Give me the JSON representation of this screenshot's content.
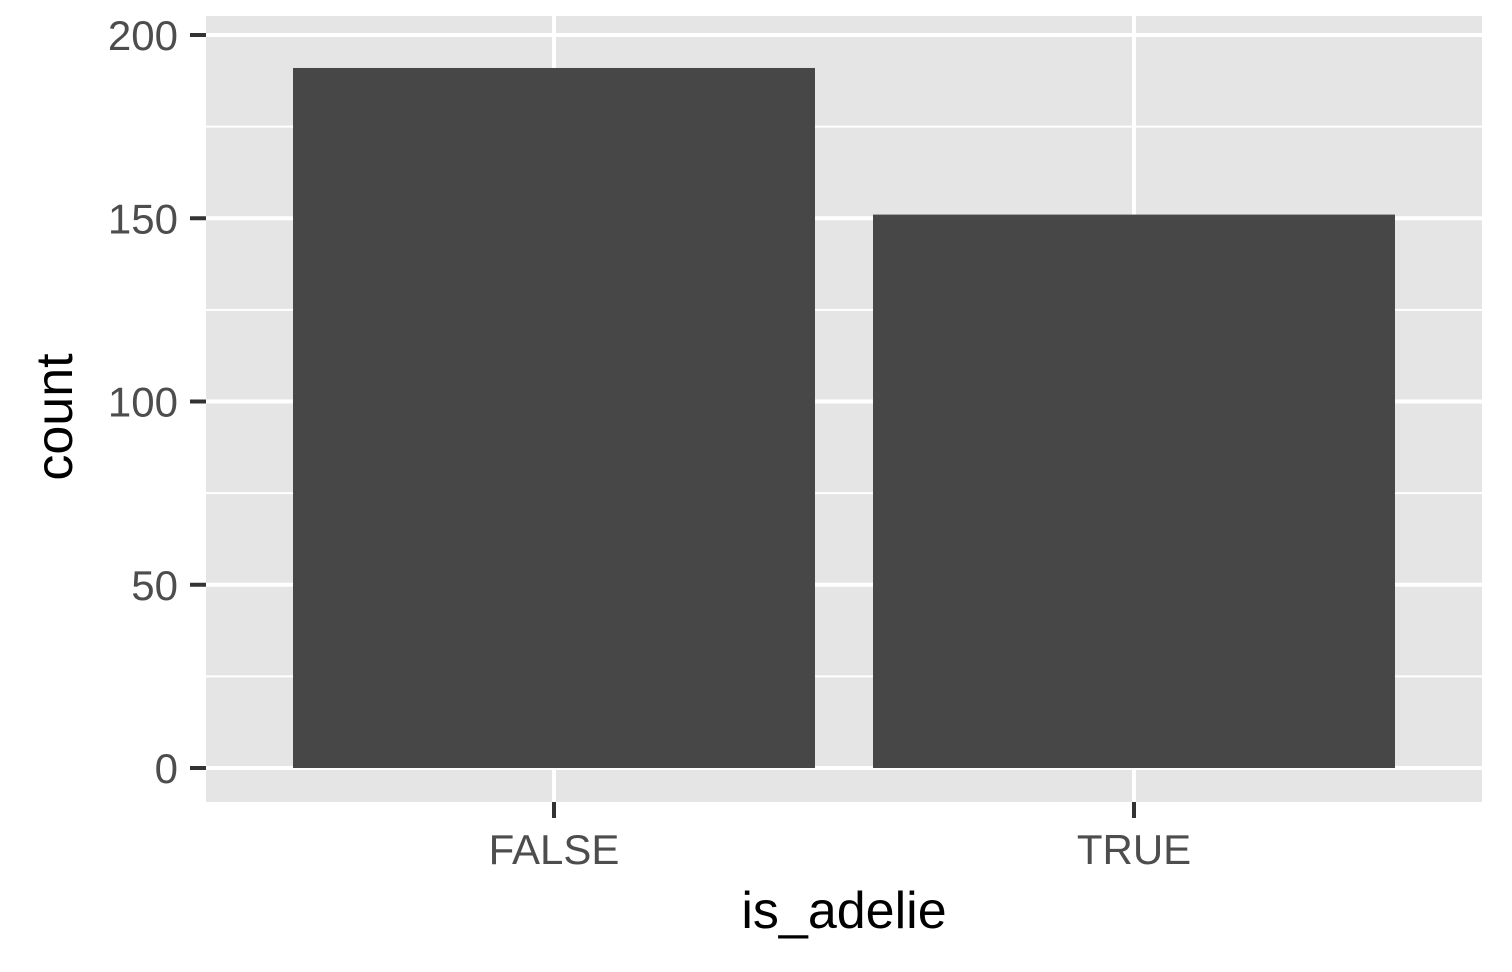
{
  "chart_data": {
    "type": "bar",
    "title": "",
    "xlabel": "is_adelie",
    "ylabel": "count",
    "categories": [
      "FALSE",
      "TRUE"
    ],
    "values": [
      191,
      151
    ],
    "ylim": [
      0,
      200
    ],
    "yticks": [
      0,
      50,
      100,
      150,
      200
    ],
    "grid": true,
    "colors": {
      "panel": "#e5e5e5",
      "grid": "#ffffff",
      "bar": "#474747",
      "tick": "#333333"
    }
  }
}
